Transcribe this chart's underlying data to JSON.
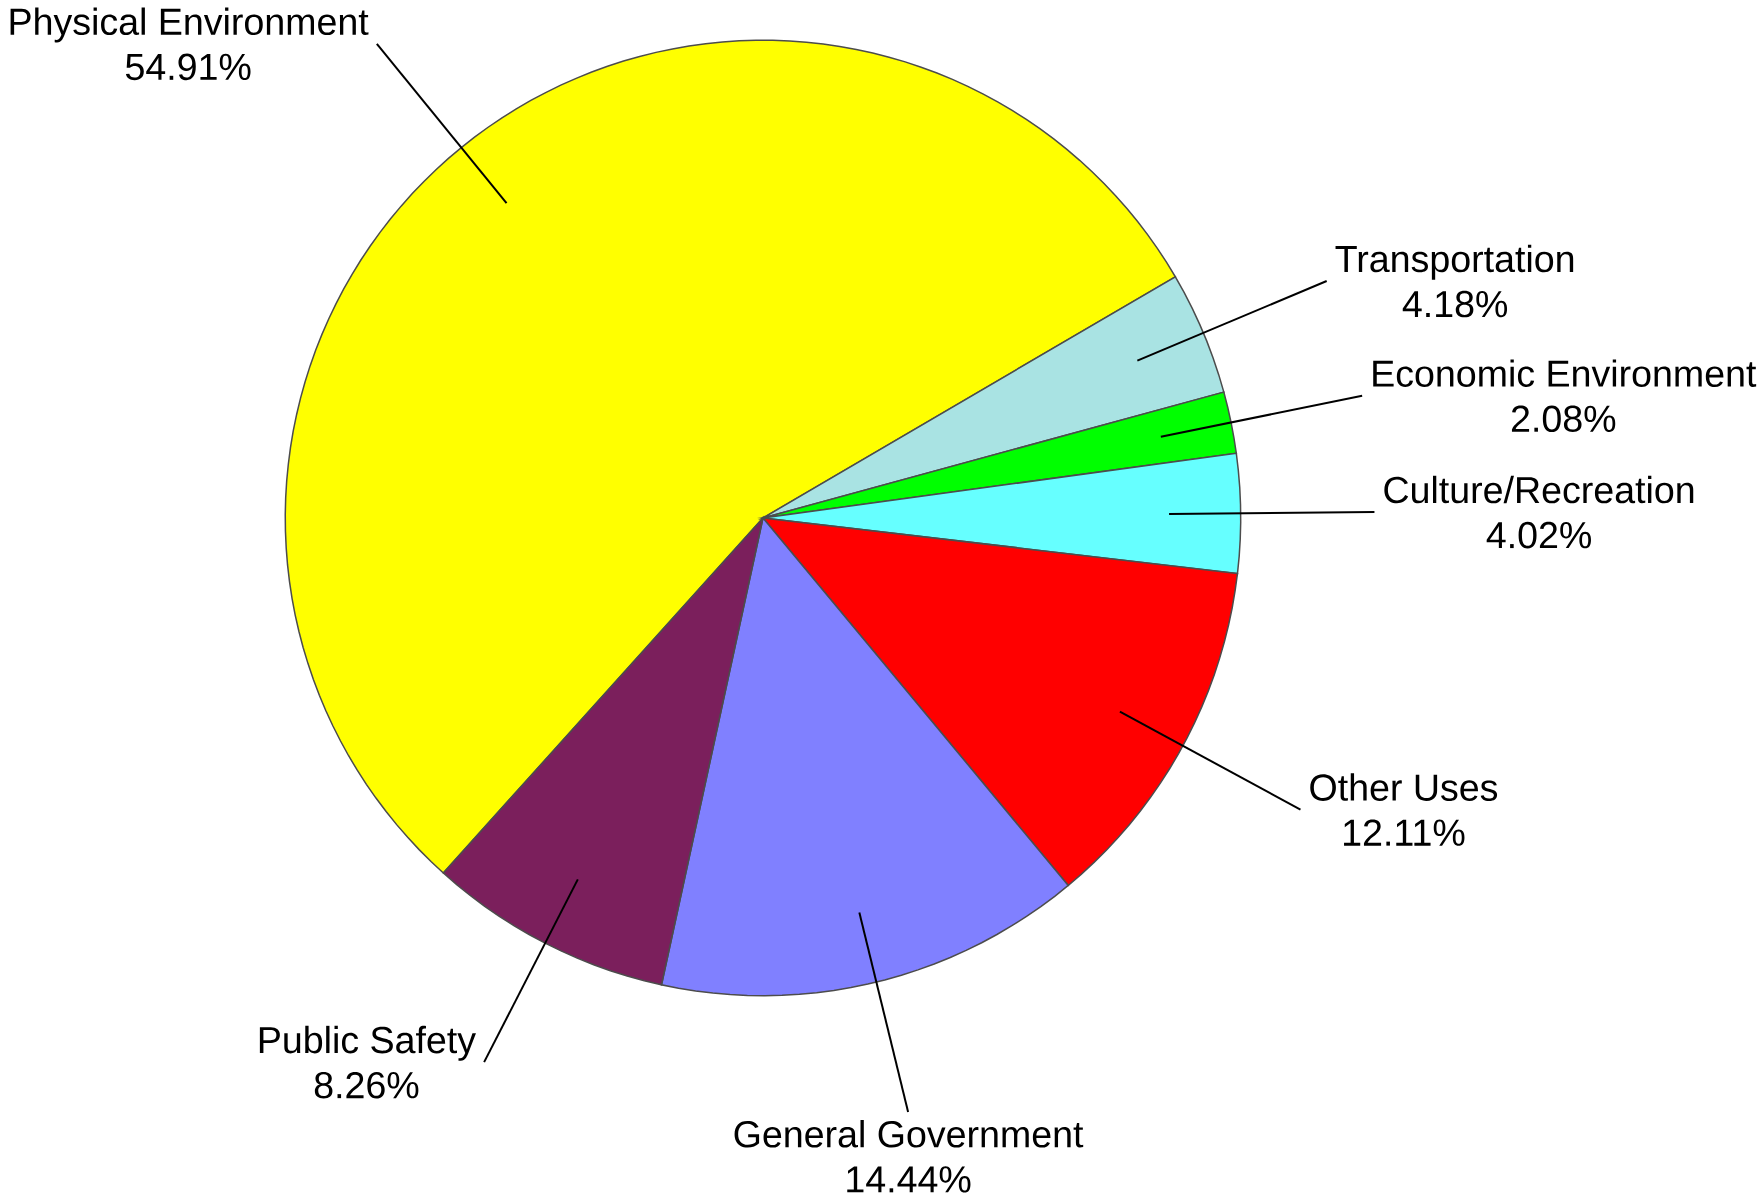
{
  "chart_data": {
    "type": "pie",
    "categories": [
      "Physical Environment",
      "Transportation",
      "Economic Environment",
      "Culture/Recreation",
      "Other Uses",
      "General Government",
      "Public Safety"
    ],
    "values": [
      54.91,
      4.18,
      2.08,
      4.02,
      12.11,
      14.44,
      8.26
    ],
    "value_labels": [
      "54.91%",
      "4.18%",
      "2.08%",
      "4.02%",
      "12.11%",
      "14.44%",
      "8.26%"
    ],
    "colors": [
      "#ffff00",
      "#a9e3e3",
      "#00ff00",
      "#66ffff",
      "#ff0000",
      "#8080ff",
      "#7b1f5c"
    ]
  }
}
